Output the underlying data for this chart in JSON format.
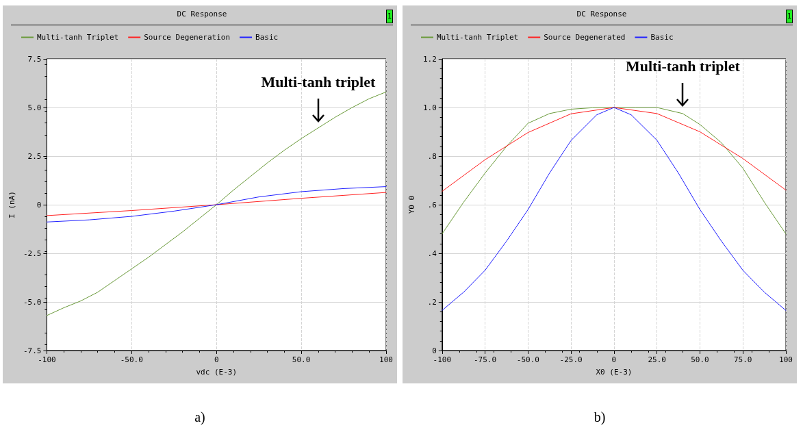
{
  "chart_data": [
    {
      "type": "line",
      "title": "DC Response",
      "xlabel": "vdc (E-3)",
      "ylabel": "I (nA)",
      "legend": "top left",
      "grid": true,
      "xlim": [
        -100,
        100
      ],
      "xticks": [
        -100,
        {
          "value": -50,
          "label": "-50.0"
        },
        0,
        {
          "value": 50,
          "label": "50.0"
        },
        100
      ],
      "ylim": [
        -7.5,
        7.5
      ],
      "yticks": [
        -7.5,
        {
          "value": -5,
          "label": "-5.0"
        },
        -2.5,
        0,
        2.5,
        {
          "value": 5,
          "label": "5.0"
        },
        7.5
      ],
      "series": [
        {
          "name": "Multi-tanh Triplet",
          "color": "#6a9a3a",
          "x": [
            -100,
            -90,
            -80,
            -70,
            -60,
            -50,
            -40,
            -30,
            -20,
            -10,
            0,
            10,
            20,
            30,
            40,
            50,
            60,
            70,
            80,
            90,
            100
          ],
          "values": [
            -5.7,
            -5.3,
            -4.95,
            -4.5,
            -3.9,
            -3.3,
            -2.7,
            -2.05,
            -1.4,
            -0.7,
            0,
            0.75,
            1.45,
            2.15,
            2.8,
            3.4,
            3.95,
            4.5,
            5.0,
            5.45,
            5.8
          ]
        },
        {
          "name": "Source Degeneration",
          "color": "#ff2020",
          "x": [
            -100,
            -50,
            0,
            50,
            100
          ],
          "values": [
            -0.56,
            -0.3,
            0,
            0.33,
            0.63
          ]
        },
        {
          "name": "Basic",
          "color": "#2020ff",
          "x": [
            -100,
            -75,
            -50,
            -25,
            0,
            25,
            50,
            75,
            100
          ],
          "values": [
            -0.89,
            -0.78,
            -0.6,
            -0.33,
            0,
            0.4,
            0.67,
            0.83,
            0.93
          ]
        }
      ],
      "annotations": [
        {
          "text": "Multi-tanh triplet",
          "x": 60,
          "y": 3.95
        },
        "1",
        "a)"
      ]
    },
    {
      "type": "line",
      "title": "DC Response",
      "xlabel": "X0 (E-3)",
      "ylabel": "Y0 0",
      "legend": "top left",
      "grid": true,
      "xlim": [
        -100,
        100
      ],
      "xticks": [
        -100,
        {
          "value": -75,
          "label": "-75.0"
        },
        {
          "value": -50,
          "label": "-50.0"
        },
        {
          "value": -25,
          "label": "-25.0"
        },
        0,
        {
          "value": 25,
          "label": "25.0"
        },
        {
          "value": 50,
          "label": "50.0"
        },
        {
          "value": 75,
          "label": "75.0"
        },
        100
      ],
      "ylim": [
        0,
        1.2
      ],
      "yticks": [
        0,
        {
          "value": 0.2,
          "label": ".2"
        },
        {
          "value": 0.4,
          "label": ".4"
        },
        {
          "value": 0.6,
          "label": ".6"
        },
        {
          "value": 0.8,
          "label": ".8"
        },
        {
          "value": 1,
          "label": "1.0"
        },
        1.2
      ],
      "series": [
        {
          "name": "Multi-tanh Triplet",
          "color": "#6a9a3a",
          "x": [
            -100,
            -87.5,
            -75,
            -62.5,
            -50,
            -37.5,
            -25,
            -12.5,
            0,
            12.5,
            25,
            40,
            50,
            62.5,
            75,
            87.5,
            100
          ],
          "values": [
            0.48,
            0.61,
            0.73,
            0.84,
            0.935,
            0.975,
            0.993,
            0.999,
            1.0,
            1.0,
            1.0,
            0.975,
            0.93,
            0.855,
            0.75,
            0.61,
            0.48
          ]
        },
        {
          "name": "Source Degenerated",
          "color": "#ff2020",
          "x": [
            -100,
            -75,
            -50,
            -25,
            0,
            25,
            50,
            75,
            100
          ],
          "values": [
            0.655,
            0.785,
            0.897,
            0.974,
            1.0,
            0.975,
            0.9,
            0.79,
            0.66
          ]
        },
        {
          "name": "Basic",
          "color": "#2020ff",
          "x": [
            -100,
            -87.5,
            -75,
            -62.5,
            -50,
            -37.5,
            -25,
            -10,
            0,
            10,
            25,
            37.5,
            50,
            62.5,
            75,
            87.5,
            100
          ],
          "values": [
            0.165,
            0.24,
            0.33,
            0.45,
            0.58,
            0.73,
            0.864,
            0.97,
            1.0,
            0.97,
            0.865,
            0.73,
            0.58,
            0.45,
            0.33,
            0.24,
            0.165
          ]
        }
      ],
      "annotations": [
        {
          "text": "Multi-tanh triplet",
          "x": 40,
          "y": 0.98
        },
        "1",
        "b)"
      ]
    }
  ]
}
